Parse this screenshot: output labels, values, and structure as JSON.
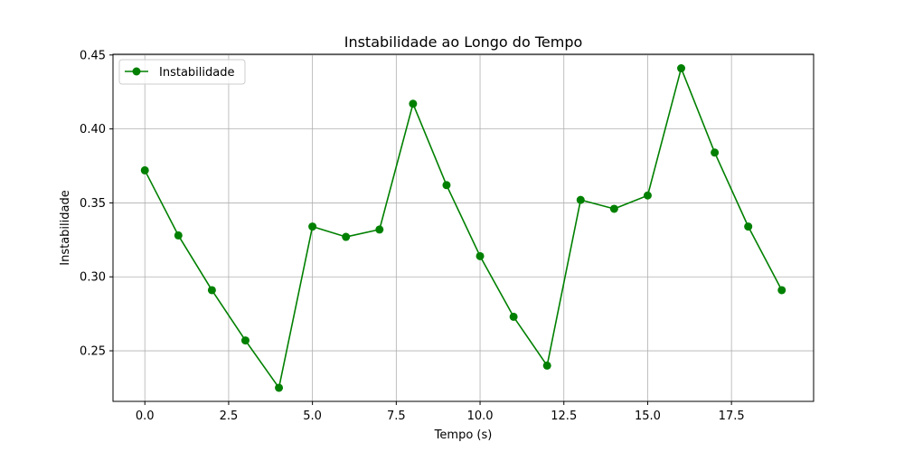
{
  "chart_data": {
    "type": "line",
    "title": "Instabilidade ao Longo do Tempo",
    "xlabel": "Tempo (s)",
    "ylabel": "Instabilidade",
    "xlim": [
      -0.95,
      19.95
    ],
    "ylim": [
      0.2158,
      0.4505
    ],
    "xticks": [
      0.0,
      2.5,
      5.0,
      7.5,
      10.0,
      12.5,
      15.0,
      17.5
    ],
    "xtick_labels": [
      "0.0",
      "2.5",
      "5.0",
      "7.5",
      "10.0",
      "12.5",
      "15.0",
      "17.5"
    ],
    "yticks": [
      0.25,
      0.3,
      0.35,
      0.4,
      0.45
    ],
    "ytick_labels": [
      "0.25",
      "0.30",
      "0.35",
      "0.40",
      "0.45"
    ],
    "grid": true,
    "legend": "top-left",
    "series": [
      {
        "name": "Instabilidade",
        "color": "#008000",
        "marker": "circle",
        "x": [
          0,
          1,
          2,
          3,
          4,
          5,
          6,
          7,
          8,
          9,
          10,
          11,
          12,
          13,
          14,
          15,
          16,
          17,
          18,
          19
        ],
        "y": [
          0.372,
          0.328,
          0.291,
          0.257,
          0.225,
          0.334,
          0.327,
          0.332,
          0.417,
          0.362,
          0.314,
          0.273,
          0.24,
          0.352,
          0.346,
          0.355,
          0.441,
          0.384,
          0.334,
          0.291
        ]
      }
    ]
  }
}
